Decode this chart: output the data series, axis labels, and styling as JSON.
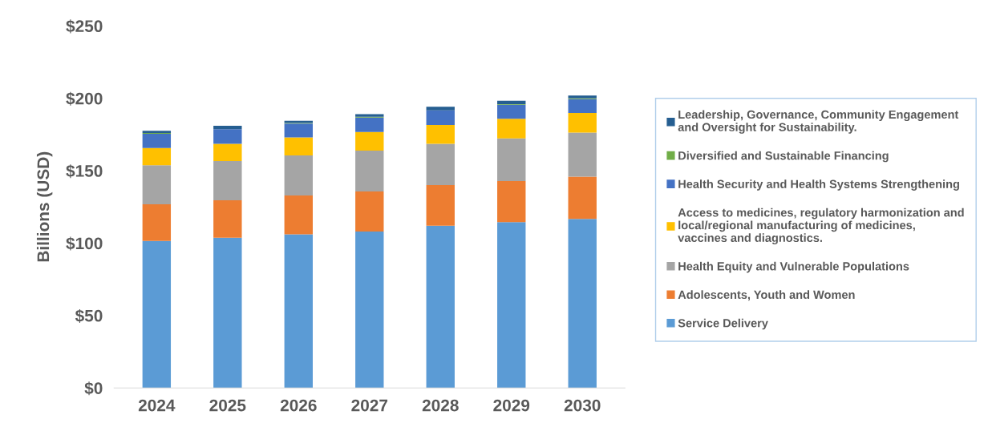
{
  "chart_data": {
    "type": "bar",
    "stacked": true,
    "ylabel": "Billions (USD)",
    "categories": [
      "2024",
      "2025",
      "2026",
      "2027",
      "2028",
      "2029",
      "2030"
    ],
    "ylim": [
      0,
      250
    ],
    "yticks": [
      {
        "value": 0,
        "label": "$0"
      },
      {
        "value": 50,
        "label": "$50"
      },
      {
        "value": 100,
        "label": "$100"
      },
      {
        "value": 150,
        "label": "$150"
      },
      {
        "value": 200,
        "label": "$200"
      },
      {
        "value": 250,
        "label": "$250"
      }
    ],
    "grid": false,
    "legend": "right",
    "series": [
      {
        "name": "Service Delivery",
        "color": "#5b9bd5",
        "values": [
          101.5,
          103.7,
          106,
          108,
          112,
          114.5,
          116.7
        ]
      },
      {
        "name": "Adolescents, Youth and Women",
        "color": "#ed7d31",
        "values": [
          25.3,
          25.8,
          26.9,
          27.7,
          28,
          28.4,
          29.2
        ]
      },
      {
        "name": "Health Equity and Vulnerable Populations",
        "color": "#a5a5a5",
        "values": [
          27,
          27.2,
          27.7,
          28.2,
          28.6,
          29.4,
          30.4
        ]
      },
      {
        "name": "Access to medicines, regulatory harmonization and\nlocal/regional manufacturing of medicines,\nvaccines and diagnostics.",
        "color": "#ffc000",
        "values": [
          11.9,
          11.9,
          12.4,
          12.8,
          13,
          13.6,
          13.5
        ]
      },
      {
        "name": "Health Security and Health Systems Strengthening",
        "color": "#4472c4",
        "values": [
          9.8,
          10.1,
          9.5,
          10,
          10.1,
          9.6,
          9.6
        ]
      },
      {
        "name": "Diversified and Sustainable Financing",
        "color": "#70ad47",
        "values": [
          0.5,
          null,
          0.5,
          0.5,
          null,
          0.5,
          0.5
        ]
      },
      {
        "name": "Leadership, Governance, Community Engagement\nand Oversight for Sustainability.",
        "color": "#255e91",
        "values": [
          1.6,
          2.3,
          1.5,
          1.8,
          2.4,
          2.3,
          2
        ]
      }
    ]
  }
}
